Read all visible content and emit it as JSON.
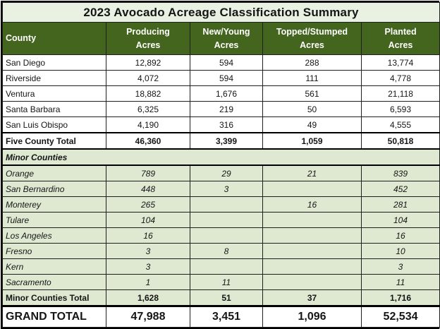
{
  "title": "2023 Avocado Acreage Classification Summary",
  "columns": {
    "county": "County",
    "producing": "Producing\nAcres",
    "new_young": "New/Young\nAcres",
    "topped_stumped": "Topped/Stumped\nAcres",
    "planted": "Planted\nAcres"
  },
  "major_rows": [
    {
      "county": "San Diego",
      "producing": "12,892",
      "new_young": "594",
      "topped_stumped": "288",
      "planted": "13,774"
    },
    {
      "county": "Riverside",
      "producing": "4,072",
      "new_young": "594",
      "topped_stumped": "111",
      "planted": "4,778"
    },
    {
      "county": "Ventura",
      "producing": "18,882",
      "new_young": "1,676",
      "topped_stumped": "561",
      "planted": "21,118"
    },
    {
      "county": "Santa Barbara",
      "producing": "6,325",
      "new_young": "219",
      "topped_stumped": "50",
      "planted": "6,593"
    },
    {
      "county": "San Luis Obispo",
      "producing": "4,190",
      "new_young": "316",
      "topped_stumped": "49",
      "planted": "4,555"
    }
  ],
  "five_county_total": {
    "county": "Five County Total",
    "producing": "46,360",
    "new_young": "3,399",
    "topped_stumped": "1,059",
    "planted": "50,818"
  },
  "minor_counties_header": "Minor Counties",
  "minor_rows": [
    {
      "county": "Orange",
      "producing": "789",
      "new_young": "29",
      "topped_stumped": "21",
      "planted": "839"
    },
    {
      "county": "San Bernardino",
      "producing": "448",
      "new_young": "3",
      "topped_stumped": "",
      "planted": "452"
    },
    {
      "county": "Monterey",
      "producing": "265",
      "new_young": "",
      "topped_stumped": "16",
      "planted": "281"
    },
    {
      "county": "Tulare",
      "producing": "104",
      "new_young": "",
      "topped_stumped": "",
      "planted": "104"
    },
    {
      "county": "Los Angeles",
      "producing": "16",
      "new_young": "",
      "topped_stumped": "",
      "planted": "16"
    },
    {
      "county": "Fresno",
      "producing": "3",
      "new_young": "8",
      "topped_stumped": "",
      "planted": "10"
    },
    {
      "county": "Kern",
      "producing": "3",
      "new_young": "",
      "topped_stumped": "",
      "planted": "3"
    },
    {
      "county": "Sacramento",
      "producing": "1",
      "new_young": "11",
      "topped_stumped": "",
      "planted": "11"
    }
  ],
  "minor_counties_total": {
    "county": "Minor Counties Total",
    "producing": "1,628",
    "new_young": "51",
    "topped_stumped": "37",
    "planted": "1,716"
  },
  "grand_total": {
    "county": "GRAND TOTAL",
    "producing": "47,988",
    "new_young": "3,451",
    "topped_stumped": "1,096",
    "planted": "52,534"
  },
  "colors": {
    "header_green": "#44651e",
    "title_bg": "#e9f1e2",
    "minor_row_bg": "#dfe9d2",
    "header_text": "#ffffff",
    "grid_line": "#1f1f1f"
  }
}
